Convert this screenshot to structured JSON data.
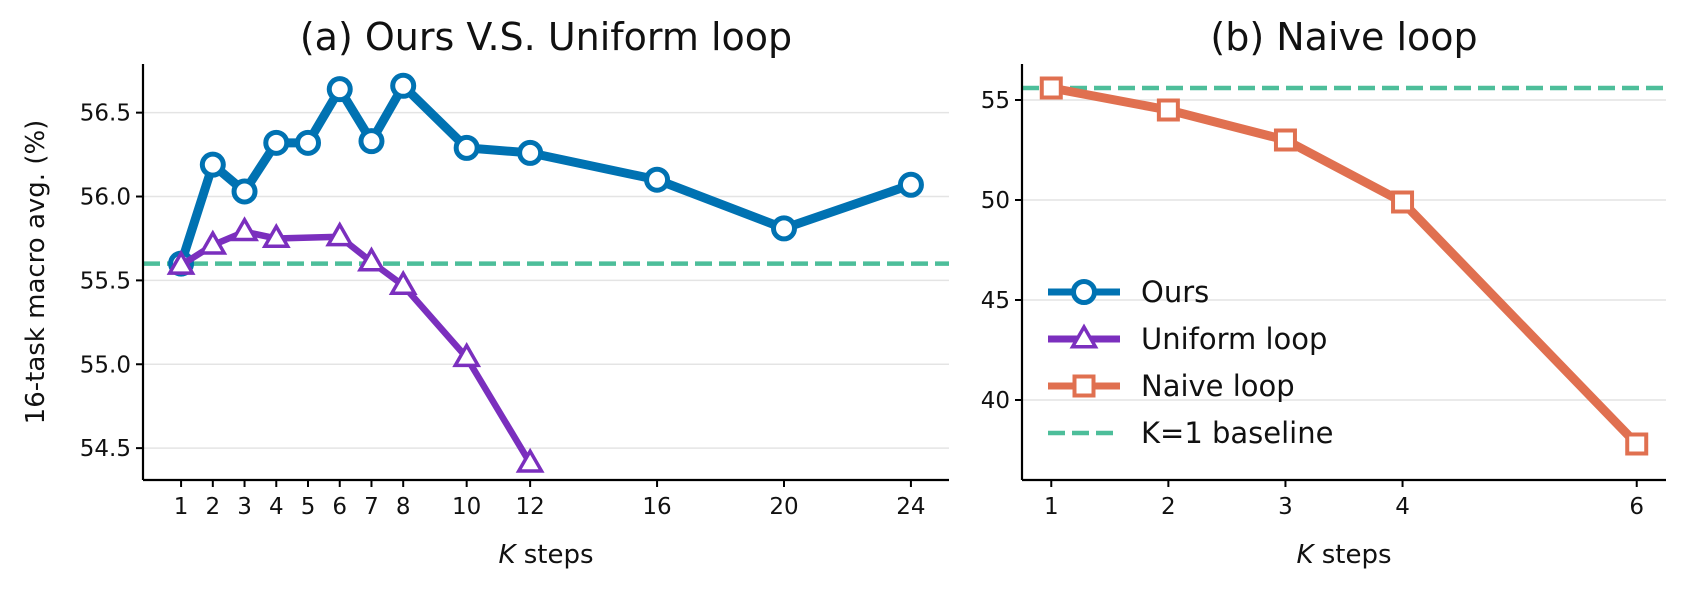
{
  "chart_data": [
    {
      "type": "line",
      "title": "(a) Ours V.S. Uniform loop",
      "xlabel_var": "K",
      "xlabel_rest": " steps",
      "ylabel": "16-task macro avg. (%)",
      "xticks": [
        1,
        2,
        3,
        4,
        5,
        6,
        7,
        8,
        10,
        12,
        16,
        20,
        24
      ],
      "yticks": [
        54.5,
        55.0,
        55.5,
        56.0,
        56.5
      ],
      "ytick_labels": [
        "54.5",
        "55.0",
        "55.5",
        "56.0",
        "56.5"
      ],
      "xlim": [
        -0.2,
        25.2
      ],
      "ylim": [
        54.31,
        56.79
      ],
      "grid": "horizontal",
      "series": [
        {
          "name": "Ours",
          "color": "#0072B2",
          "marker": "circle",
          "x": [
            1,
            2,
            3,
            4,
            5,
            6,
            7,
            8,
            10,
            12,
            16,
            20,
            24
          ],
          "y": [
            55.6,
            56.19,
            56.03,
            56.32,
            56.32,
            56.64,
            56.33,
            56.66,
            56.29,
            56.26,
            56.1,
            55.81,
            56.07
          ]
        },
        {
          "name": "Uniform loop",
          "color": "#7B2FBE",
          "marker": "triangle",
          "x": [
            1,
            2,
            3,
            4,
            6,
            7,
            8,
            10,
            12
          ],
          "y": [
            55.59,
            55.71,
            55.79,
            55.75,
            55.76,
            55.61,
            55.47,
            55.04,
            54.41
          ]
        }
      ],
      "baseline": {
        "name": "K=1 baseline",
        "y": 55.6,
        "color": "#4DBE9A"
      }
    },
    {
      "type": "line",
      "title": "(b) Naive loop",
      "xlabel_var": "K",
      "xlabel_rest": " steps",
      "ylabel": "",
      "xticks": [
        1,
        2,
        3,
        4,
        6
      ],
      "yticks": [
        40,
        45,
        50,
        55
      ],
      "ytick_labels": [
        "40",
        "45",
        "50",
        "55"
      ],
      "xlim": [
        0.75,
        6.25
      ],
      "ylim": [
        36.0,
        56.8
      ],
      "grid": "horizontal",
      "series": [
        {
          "name": "Naive loop",
          "color": "#E07050",
          "marker": "square",
          "x": [
            1,
            2,
            3,
            4,
            6
          ],
          "y": [
            55.6,
            54.5,
            53.0,
            49.9,
            37.8
          ]
        }
      ],
      "baseline": {
        "name": "K=1 baseline",
        "y": 55.6,
        "color": "#4DBE9A"
      }
    }
  ],
  "legend": {
    "placement": "center-left of panel (b)",
    "entries": [
      {
        "label": "Ours",
        "color": "#0072B2",
        "marker": "circle",
        "style": "solid"
      },
      {
        "label": "Uniform loop",
        "color": "#7B2FBE",
        "marker": "triangle",
        "style": "solid"
      },
      {
        "label": "Naive loop",
        "color": "#E07050",
        "marker": "square",
        "style": "solid"
      },
      {
        "label": "K=1 baseline",
        "color": "#4DBE9A",
        "marker": "none",
        "style": "dashed"
      }
    ]
  }
}
